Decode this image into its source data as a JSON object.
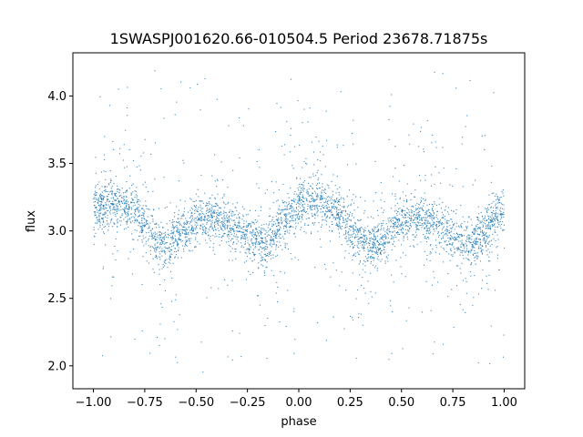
{
  "chart_data": {
    "type": "scatter",
    "title": "1SWASPJ001620.66-010504.5 Period 23678.71875s",
    "xlabel": "phase",
    "ylabel": "flux",
    "xlim": [
      -1.1,
      1.1
    ],
    "ylim": [
      1.83,
      4.32
    ],
    "xticks": [
      -1.0,
      -0.75,
      -0.5,
      -0.25,
      0.0,
      0.25,
      0.5,
      0.75,
      1.0
    ],
    "xtick_labels": [
      "−1.00",
      "−0.75",
      "−0.50",
      "−0.25",
      "0.00",
      "0.25",
      "0.50",
      "0.75",
      "1.00"
    ],
    "yticks": [
      2.0,
      2.5,
      3.0,
      3.5,
      4.0
    ],
    "ytick_labels": [
      "2.0",
      "2.5",
      "3.0",
      "3.5",
      "4.0"
    ],
    "grid": false,
    "marker_color": "#1f77b4",
    "phase_range": [
      -1.0,
      1.0
    ],
    "flux_range": [
      1.95,
      4.2
    ],
    "trend": {
      "phase": [
        -1.0,
        -0.9,
        -0.8,
        -0.7,
        -0.65,
        -0.6,
        -0.5,
        -0.4,
        -0.3,
        -0.2,
        -0.15,
        -0.1,
        0.0,
        0.05,
        0.1,
        0.2,
        0.3,
        0.35,
        0.4,
        0.5,
        0.6,
        0.7,
        0.8,
        0.85,
        0.9,
        1.0
      ],
      "flux": [
        3.17,
        3.22,
        3.15,
        2.95,
        2.88,
        2.95,
        3.07,
        3.1,
        3.02,
        2.92,
        2.92,
        3.02,
        3.18,
        3.23,
        3.22,
        3.12,
        2.95,
        2.88,
        2.93,
        3.07,
        3.1,
        3.02,
        2.92,
        2.9,
        2.98,
        3.15
      ]
    }
  }
}
